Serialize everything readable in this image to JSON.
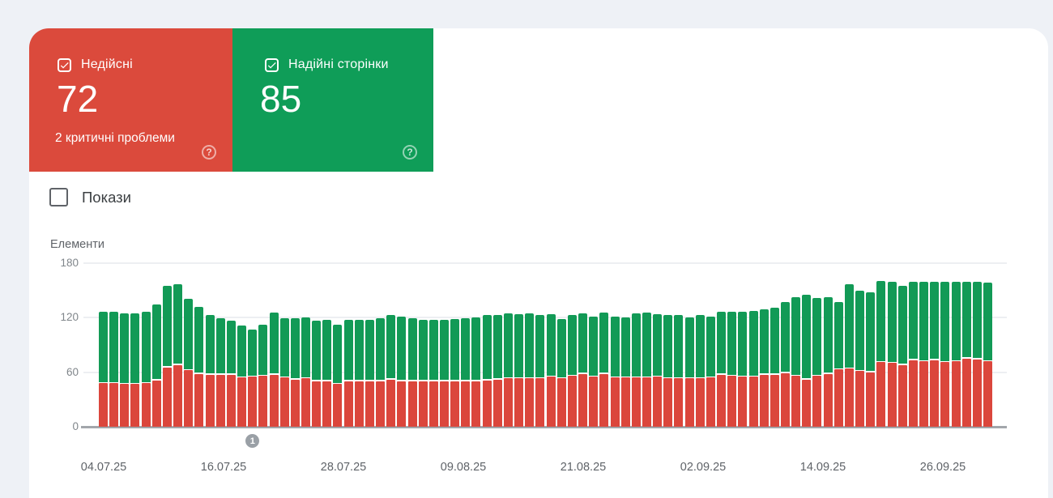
{
  "cards": {
    "invalid": {
      "label": "Недійсні",
      "value": "72",
      "subtitle": "2 критичні проблеми",
      "checked": true,
      "color": "#db4a3c"
    },
    "valid": {
      "label": "Надійні сторінки",
      "value": "85",
      "checked": true,
      "color": "#0f9d58"
    }
  },
  "impressions_toggle": {
    "label": "Покази",
    "checked": false
  },
  "chart_data": {
    "type": "bar",
    "stacked": true,
    "ylabel": "Елементи",
    "ylim": [
      0,
      180
    ],
    "yticks": [
      0,
      60,
      120,
      180
    ],
    "grid": true,
    "x_labels": [
      "04.07.25",
      "16.07.25",
      "28.07.25",
      "09.08.25",
      "21.08.25",
      "02.09.25",
      "14.09.25",
      "26.09.25"
    ],
    "series": [
      {
        "name": "Недійсні",
        "color": "#db463c",
        "values": [
          48,
          48,
          47,
          47,
          48,
          51,
          65,
          68,
          62,
          58,
          57,
          57,
          57,
          54,
          55,
          56,
          57,
          54,
          52,
          53,
          50,
          50,
          47,
          50,
          50,
          50,
          50,
          52,
          50,
          50,
          50,
          50,
          50,
          50,
          50,
          50,
          51,
          52,
          53,
          53,
          53,
          53,
          55,
          53,
          56,
          58,
          55,
          58,
          54,
          54,
          54,
          54,
          55,
          53,
          53,
          53,
          53,
          54,
          57,
          56,
          55,
          55,
          57,
          57,
          59,
          56,
          52,
          56,
          58,
          63,
          64,
          61,
          60,
          71,
          70,
          68,
          73,
          72,
          73,
          71,
          72,
          75,
          74,
          72
        ]
      },
      {
        "name": "Надійні сторінки",
        "color": "#129a56",
        "values": [
          77,
          77,
          76,
          76,
          77,
          82,
          88,
          87,
          77,
          72,
          64,
          61,
          58,
          56,
          50,
          55,
          67,
          64,
          66,
          66,
          65,
          66,
          64,
          66,
          66,
          66,
          68,
          69,
          70,
          68,
          66,
          66,
          66,
          67,
          68,
          69,
          70,
          69,
          70,
          69,
          70,
          68,
          67,
          64,
          65,
          65,
          65,
          66,
          66,
          65,
          69,
          70,
          67,
          68,
          68,
          66,
          68,
          66,
          68,
          69,
          70,
          71,
          71,
          72,
          77,
          85,
          92,
          84,
          83,
          73,
          91,
          87,
          86,
          88,
          88,
          85,
          85,
          86,
          85,
          87,
          86,
          83,
          84,
          85
        ]
      }
    ],
    "annotation": {
      "label": "1",
      "bar_index": 14
    }
  }
}
